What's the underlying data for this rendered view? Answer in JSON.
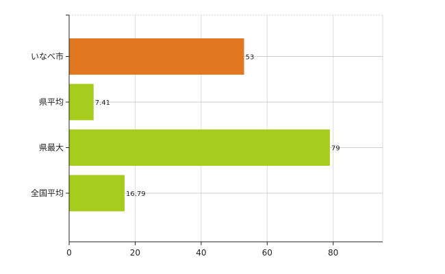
{
  "chart_data": {
    "type": "bar",
    "orientation": "horizontal",
    "categories": [
      "いなべ市",
      "県平均",
      "県最大",
      "全国平均"
    ],
    "values": [
      53,
      7.41,
      79,
      16.79
    ],
    "value_labels": [
      "53",
      "7.41",
      "79",
      "16.79"
    ],
    "bar_colors": [
      "#E07820",
      "#A6CC1E",
      "#A6CC1E",
      "#A6CC1E"
    ],
    "title": "",
    "xlabel": "",
    "ylabel": "",
    "xlim": [
      0,
      95
    ],
    "x_ticks": [
      0,
      20,
      40,
      60,
      80
    ],
    "x_tick_labels": [
      "0",
      "20",
      "40",
      "60",
      "80"
    ],
    "grid": true,
    "legend": "none"
  }
}
